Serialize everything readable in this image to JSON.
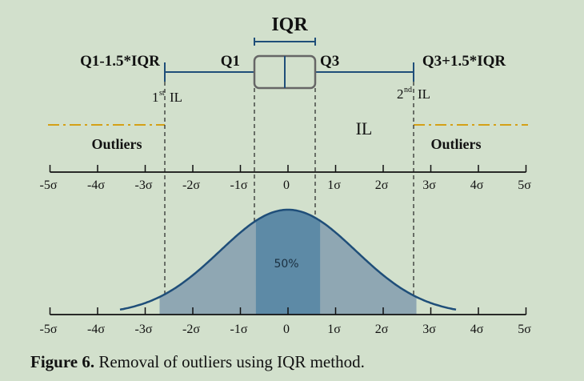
{
  "labels": {
    "iqr": "IQR",
    "lower_fence": "Q1-1.5*IQR",
    "q1": "Q1",
    "q3": "Q3",
    "upper_fence": "Q3+1.5*IQR",
    "first_il": "1",
    "first_il_sup": "st",
    "first_il_suffix": "IL",
    "second_il": "2",
    "second_il_sup": "nd",
    "second_il_suffix": "IL",
    "il": "IL",
    "outliers_left": "Outliers",
    "outliers_right": "Outliers",
    "fifty_pct": "50%"
  },
  "ticks": [
    "-5σ",
    "-4σ",
    "-3σ",
    "-2σ",
    "-1σ",
    "0",
    "1σ",
    "2σ",
    "3σ",
    "4σ",
    "5σ"
  ],
  "caption": {
    "prefix": "Figure 6.",
    "text": "Removal of outliers using IQR method."
  },
  "colors": {
    "background": "#d2e0cc",
    "line": "#1f4e79",
    "outlier_dash": "#d4a017",
    "tails_fill": "#8fa7b3",
    "center_fill": "#5d8aa6"
  },
  "box_plot": {
    "q1_sigma": -0.6745,
    "q3_sigma": 0.6745,
    "fence_low_sigma": -2.698,
    "fence_high_sigma": 2.698
  }
}
